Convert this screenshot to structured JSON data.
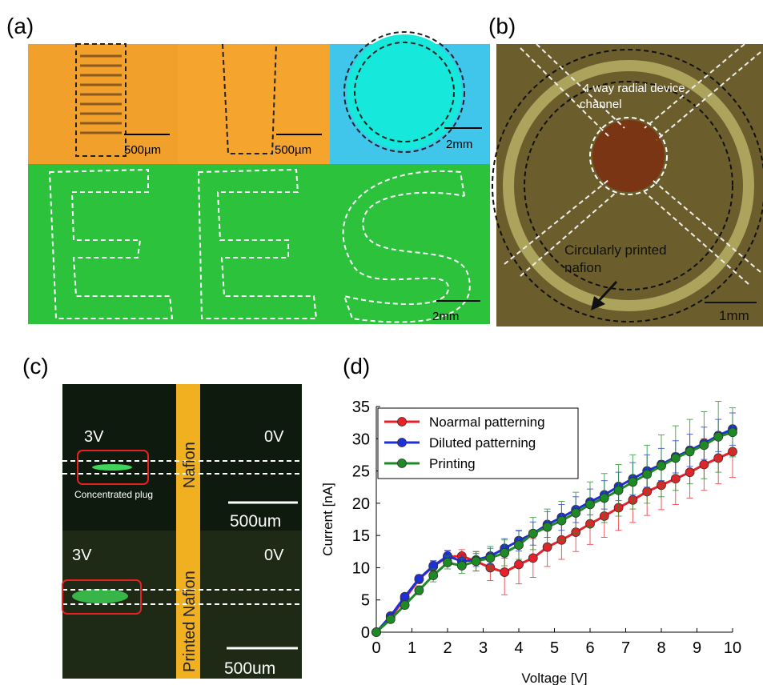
{
  "panels": {
    "a": {
      "label": "(a)",
      "scale_bars": [
        "500µm",
        "500µm",
        "2mm",
        "2mm"
      ]
    },
    "b": {
      "label": "(b)",
      "channel_note": [
        "4 way radial device",
        "channel"
      ],
      "nafion_note": [
        "Circularly printed",
        "nafion"
      ],
      "scale_bar": "1mm"
    },
    "c": {
      "label": "(c)",
      "top": {
        "left_voltage": "3V",
        "right_voltage": "0V",
        "strip": "Nafion",
        "plug": "Concentrated plug",
        "scale_bar": "500um"
      },
      "bottom": {
        "left_voltage": "3V",
        "right_voltage": "0V",
        "strip": "Printed Nafion",
        "scale_bar": "500um"
      }
    },
    "d": {
      "label": "(d)"
    }
  },
  "chart_data": {
    "type": "line",
    "x_label": "Voltage [V]",
    "y_label": "Current [nA]",
    "x": [
      0,
      0.4,
      0.8,
      1.2,
      1.6,
      2.0,
      2.4,
      2.8,
      3.2,
      3.6,
      4.0,
      4.4,
      4.8,
      5.2,
      5.6,
      6.0,
      6.4,
      6.8,
      7.2,
      7.6,
      8.0,
      8.4,
      8.8,
      9.2,
      9.6,
      10.0
    ],
    "xlim": [
      0,
      10
    ],
    "xticks": [
      0,
      1,
      2,
      3,
      4,
      5,
      6,
      7,
      8,
      9,
      10
    ],
    "ylim": [
      0,
      35
    ],
    "yticks": [
      0,
      5,
      10,
      15,
      20,
      25,
      30,
      35
    ],
    "legend": "upper left",
    "series": [
      {
        "name": "Noarmal patterning",
        "color": "#e8202a",
        "values": [
          0,
          2.3,
          5.2,
          8.2,
          10.2,
          11.7,
          11.8,
          11.0,
          10.0,
          9.3,
          10.5,
          11.5,
          13.2,
          14.3,
          15.5,
          16.8,
          18.0,
          19.3,
          20.5,
          21.8,
          22.8,
          23.8,
          24.8,
          26.0,
          27.0,
          28.0
        ],
        "errors": [
          0,
          0.3,
          0.4,
          0.6,
          0.8,
          1,
          1,
          1.5,
          2,
          3.5,
          3,
          3,
          3,
          3,
          3,
          3.2,
          3.3,
          3.5,
          3.5,
          3.7,
          3.8,
          4,
          4,
          4,
          4,
          4
        ]
      },
      {
        "name": "Diluted patterning",
        "color": "#1f2fd8",
        "values": [
          0,
          2.5,
          5.5,
          8.3,
          10.3,
          11.8,
          11.0,
          11.2,
          11.8,
          13.0,
          14.2,
          15.3,
          16.7,
          17.8,
          19.0,
          20.2,
          21.3,
          22.6,
          23.8,
          25.0,
          26.0,
          27.2,
          28.2,
          29.3,
          30.5,
          31.5
        ],
        "errors": [
          0,
          0.3,
          0.5,
          0.6,
          0.8,
          0.8,
          1,
          1,
          1.2,
          1.5,
          1.6,
          1.8,
          2,
          2,
          2,
          2,
          2.2,
          2.2,
          2.5,
          2.5,
          2.5,
          2.5,
          2.5,
          2.5,
          2.5,
          2.5
        ]
      },
      {
        "name": "Printing",
        "color": "#1d8a26",
        "values": [
          0,
          2.0,
          4.2,
          6.5,
          8.8,
          10.8,
          10.3,
          11.0,
          11.5,
          12.3,
          13.5,
          15.3,
          16.3,
          17.3,
          18.5,
          19.8,
          20.8,
          22.0,
          23.3,
          24.5,
          25.8,
          27.0,
          28.0,
          29.0,
          30.3,
          31.0
        ],
        "errors": [
          0,
          0.3,
          0.5,
          0.7,
          1,
          1,
          1.2,
          1.5,
          1.8,
          2,
          2.2,
          2.5,
          2.8,
          3,
          3.2,
          3.5,
          3.8,
          4,
          4.2,
          4.5,
          4.8,
          5,
          5,
          5.2,
          5.5,
          3.8
        ]
      }
    ]
  }
}
